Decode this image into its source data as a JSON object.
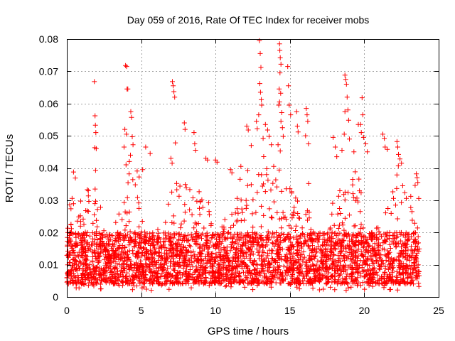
{
  "chart_data": {
    "type": "scatter",
    "title": "Day 059 of 2016, Rate Of TEC Index for receiver mobs",
    "xlabel": "GPS time / hours",
    "ylabel": "ROTI / TECUs",
    "xlim": [
      0,
      25
    ],
    "ylim": [
      0,
      0.08
    ],
    "grid": true,
    "marker": "+",
    "marker_color": "#ff0000",
    "x_ticks": [
      {
        "value": 0,
        "label": "0"
      },
      {
        "value": 5,
        "label": "5"
      },
      {
        "value": 10,
        "label": "10"
      },
      {
        "value": 15,
        "label": "15"
      },
      {
        "value": 20,
        "label": "20"
      },
      {
        "value": 25,
        "label": "25"
      }
    ],
    "y_ticks": [
      {
        "value": 0,
        "label": "0"
      },
      {
        "value": 0.01,
        "label": "0.01"
      },
      {
        "value": 0.02,
        "label": "0.02"
      },
      {
        "value": 0.03,
        "label": "0.03"
      },
      {
        "value": 0.04,
        "label": "0.04"
      },
      {
        "value": 0.05,
        "label": "0.05"
      },
      {
        "value": 0.06,
        "label": "0.06"
      },
      {
        "value": 0.07,
        "label": "0.07"
      },
      {
        "value": 0.08,
        "label": "0.08"
      }
    ],
    "dense_band": {
      "x_start": 0.0,
      "x_end": 23.7,
      "y_typical_low": 0.004,
      "y_typical_high": 0.02
    },
    "outlier_points": [
      [
        1.85,
        0.0668
      ],
      [
        1.9,
        0.0562
      ],
      [
        1.92,
        0.0533
      ],
      [
        1.95,
        0.051
      ],
      [
        1.88,
        0.0463
      ],
      [
        1.98,
        0.046
      ],
      [
        1.93,
        0.0393
      ],
      [
        3.95,
        0.0718
      ],
      [
        4.02,
        0.0715
      ],
      [
        4.05,
        0.0645
      ],
      [
        4.1,
        0.0645
      ],
      [
        3.9,
        0.052
      ],
      [
        4.0,
        0.0505
      ],
      [
        4.3,
        0.0575
      ],
      [
        4.35,
        0.0557
      ],
      [
        4.4,
        0.0497
      ],
      [
        4.28,
        0.044
      ],
      [
        4.45,
        0.0472
      ],
      [
        4.2,
        0.042
      ],
      [
        3.85,
        0.0465
      ],
      [
        3.98,
        0.041
      ],
      [
        5.3,
        0.0465
      ],
      [
        5.6,
        0.0445
      ],
      [
        5.1,
        0.0395
      ],
      [
        7.1,
        0.0668
      ],
      [
        7.15,
        0.0655
      ],
      [
        7.2,
        0.0637
      ],
      [
        7.25,
        0.062
      ],
      [
        7.3,
        0.0478
      ],
      [
        7.0,
        0.043
      ],
      [
        7.08,
        0.0415
      ],
      [
        7.9,
        0.054
      ],
      [
        7.95,
        0.052
      ],
      [
        8.55,
        0.051
      ],
      [
        8.6,
        0.0475
      ],
      [
        8.65,
        0.0455
      ],
      [
        9.35,
        0.043
      ],
      [
        9.45,
        0.0425
      ],
      [
        10.0,
        0.0425
      ],
      [
        10.1,
        0.0418
      ],
      [
        11.0,
        0.0395
      ],
      [
        11.1,
        0.0385
      ],
      [
        11.65,
        0.0365
      ],
      [
        11.7,
        0.0405
      ],
      [
        12.1,
        0.053
      ],
      [
        12.2,
        0.0518
      ],
      [
        12.4,
        0.047
      ],
      [
        12.95,
        0.0795
      ],
      [
        13.0,
        0.0755
      ],
      [
        13.05,
        0.0712
      ],
      [
        12.98,
        0.0662
      ],
      [
        13.02,
        0.0635
      ],
      [
        13.08,
        0.0612
      ],
      [
        13.1,
        0.0595
      ],
      [
        12.9,
        0.0565
      ],
      [
        12.75,
        0.0545
      ],
      [
        12.8,
        0.0522
      ],
      [
        13.2,
        0.0492
      ],
      [
        13.35,
        0.0535
      ],
      [
        13.5,
        0.0518
      ],
      [
        13.6,
        0.0498
      ],
      [
        13.75,
        0.0472
      ],
      [
        14.3,
        0.0785
      ],
      [
        14.32,
        0.0765
      ],
      [
        14.35,
        0.0742
      ],
      [
        14.4,
        0.0722
      ],
      [
        14.33,
        0.0695
      ],
      [
        14.28,
        0.0645
      ],
      [
        14.38,
        0.0632
      ],
      [
        14.3,
        0.0605
      ],
      [
        14.25,
        0.0595
      ],
      [
        14.45,
        0.0572
      ],
      [
        14.4,
        0.0545
      ],
      [
        14.5,
        0.0525
      ],
      [
        14.55,
        0.0498
      ],
      [
        14.2,
        0.0472
      ],
      [
        14.35,
        0.0453
      ],
      [
        14.85,
        0.0715
      ],
      [
        14.9,
        0.0655
      ],
      [
        14.95,
        0.0595
      ],
      [
        15.05,
        0.0565
      ],
      [
        15.45,
        0.0575
      ],
      [
        15.5,
        0.053
      ],
      [
        15.55,
        0.0512
      ],
      [
        16.1,
        0.0585
      ],
      [
        16.15,
        0.0565
      ],
      [
        16.2,
        0.0545
      ],
      [
        16.05,
        0.05
      ],
      [
        16.25,
        0.0475
      ],
      [
        17.9,
        0.0495
      ],
      [
        18.05,
        0.0465
      ],
      [
        18.15,
        0.0435
      ],
      [
        18.5,
        0.0455
      ],
      [
        18.7,
        0.0688
      ],
      [
        18.75,
        0.0675
      ],
      [
        18.8,
        0.066
      ],
      [
        18.85,
        0.062
      ],
      [
        18.9,
        0.058
      ],
      [
        18.7,
        0.0575
      ],
      [
        18.95,
        0.0548
      ],
      [
        18.65,
        0.0505
      ],
      [
        19.0,
        0.049
      ],
      [
        19.3,
        0.045
      ],
      [
        19.6,
        0.0535
      ],
      [
        19.85,
        0.0618
      ],
      [
        19.9,
        0.0565
      ],
      [
        19.75,
        0.0535
      ],
      [
        19.8,
        0.051
      ],
      [
        19.95,
        0.0495
      ],
      [
        20.1,
        0.0475
      ],
      [
        20.2,
        0.045
      ],
      [
        21.25,
        0.0505
      ],
      [
        21.35,
        0.0492
      ],
      [
        21.4,
        0.0465
      ],
      [
        21.55,
        0.0458
      ],
      [
        22.2,
        0.0482
      ],
      [
        22.25,
        0.0465
      ],
      [
        22.3,
        0.0442
      ],
      [
        22.4,
        0.0428
      ],
      [
        22.5,
        0.0415
      ],
      [
        23.5,
        0.0382
      ],
      [
        23.55,
        0.037
      ],
      [
        23.6,
        0.0355
      ]
    ]
  }
}
